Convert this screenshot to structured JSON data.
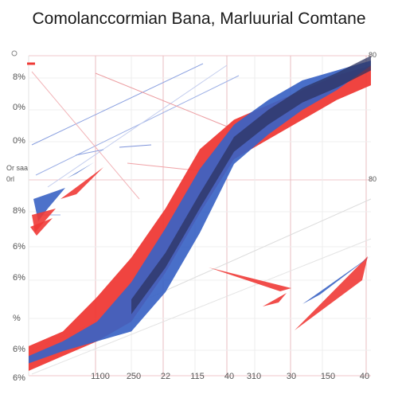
{
  "chart_data": {
    "type": "area",
    "title": "Comolanccormian Bana, Marluurial Comtane",
    "xlabel": "",
    "ylabel": "",
    "grid": true,
    "legend": "none",
    "x_tick_labels": [
      "1100",
      "250",
      "22",
      "115",
      "40",
      "310",
      "30",
      "150",
      "40"
    ],
    "y_tick_labels": [
      "0",
      "8%",
      "0%",
      "0%",
      "Or saa",
      "0rl",
      "8%",
      "6%",
      "6%",
      "%",
      "6%",
      "6%"
    ],
    "corner_labels": [
      "80",
      "80"
    ],
    "x": [
      0,
      1,
      2,
      3,
      4,
      5,
      6,
      7,
      8,
      9,
      10
    ],
    "series": [
      {
        "color": "#ef3a36",
        "lower": [
          2,
          8,
          14,
          22,
          42,
          66,
          88,
          96,
          104,
          112,
          118
        ],
        "upper": [
          12,
          18,
          32,
          48,
          68,
          92,
          104,
          110,
          116,
          122,
          126
        ]
      },
      {
        "color": "#3a63c4",
        "lower": [
          5,
          10,
          14,
          18,
          34,
          58,
          86,
          98,
          108,
          116,
          126
        ],
        "upper": [
          8,
          14,
          22,
          38,
          60,
          84,
          102,
          112,
          120,
          124,
          128
        ]
      }
    ],
    "colors": {
      "red": "#ef3a36",
      "blue": "#3a63c4",
      "dark": "#2c3360",
      "grid": "#e8bcc0"
    }
  }
}
